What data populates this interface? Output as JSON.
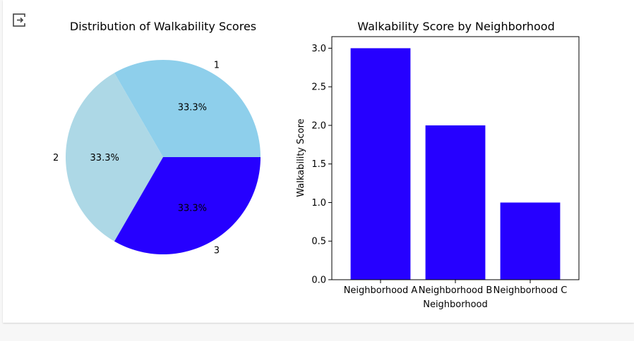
{
  "output": {
    "icon": "output-collapse-icon"
  },
  "chart_data": [
    {
      "type": "pie",
      "title": "Distribution of Walkability Scores",
      "labels": [
        "1",
        "2",
        "3"
      ],
      "values": [
        1,
        1,
        1
      ],
      "percent_labels": [
        "33.3%",
        "33.3%",
        "33.3%"
      ],
      "colors": [
        "#8ecfeb",
        "#add8e6",
        "#2600ff"
      ]
    },
    {
      "type": "bar",
      "title": "Walkability Score by Neighborhood",
      "categories": [
        "Neighborhood A",
        "Neighborhood B",
        "Neighborhood C"
      ],
      "values": [
        3,
        2,
        1
      ],
      "xlabel": "Neighborhood",
      "ylabel": "Walkability Score",
      "ylim": [
        0,
        3.15
      ],
      "yticks": [
        "0.0",
        "0.5",
        "1.0",
        "1.5",
        "2.0",
        "2.5",
        "3.0"
      ],
      "color": "#2600ff",
      "grid": false
    }
  ]
}
